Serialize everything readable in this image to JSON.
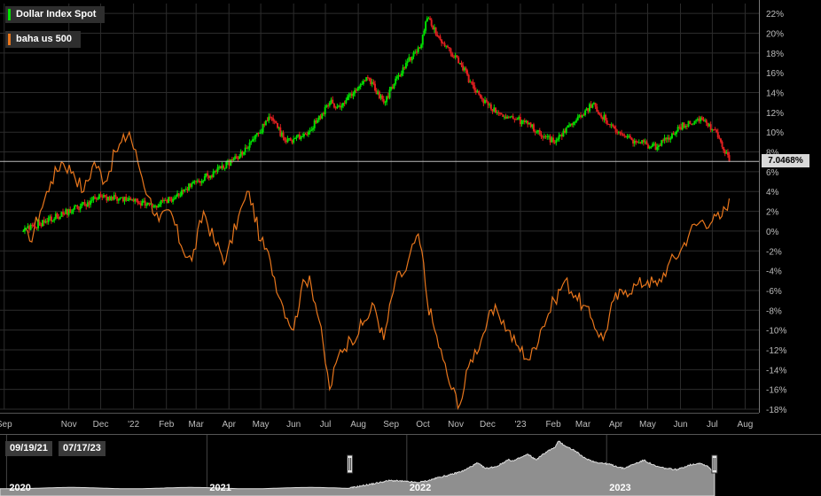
{
  "legend": [
    {
      "label": "Dollar Index Spot",
      "color": "#00e000"
    },
    {
      "label": "baha us 500",
      "color": "#e8761c"
    }
  ],
  "last_value_label": "7.0468%",
  "range": {
    "start": "09/19/21",
    "end": "07/17/23"
  },
  "navigator": {
    "year_labels": [
      "2020",
      "2021",
      "2022",
      "2023"
    ]
  },
  "chart_data": {
    "type": "line",
    "xlabel": "",
    "ylabel": "",
    "y_unit": "%",
    "ylim": [
      -18,
      23
    ],
    "y_ticks": [
      22,
      20,
      18,
      16,
      14,
      12,
      10,
      8,
      6,
      4,
      2,
      0,
      -2,
      -4,
      -6,
      -8,
      -10,
      -12,
      -14,
      -16,
      -18
    ],
    "y_tick_labels": [
      "22%",
      "20%",
      "18%",
      "16%",
      "14%",
      "12%",
      "10%",
      "8%",
      "6%",
      "4%",
      "2%",
      "0%",
      "-2%",
      "-4%",
      "-6%",
      "-8%",
      "-10%",
      "-12%",
      "-14%",
      "-16%",
      "-18%"
    ],
    "x_tick_labels": [
      "Sep",
      "Nov",
      "Dec",
      "'22",
      "Feb",
      "Mar",
      "Apr",
      "May",
      "Jun",
      "Jul",
      "Aug",
      "Sep",
      "Oct",
      "Nov",
      "Dec",
      "'23",
      "Feb",
      "Mar",
      "Apr",
      "May",
      "Jun",
      "Jul",
      "Aug"
    ],
    "x_tick_dates": [
      "2021-09-01",
      "2021-11-01",
      "2021-12-01",
      "2022-01-01",
      "2022-02-01",
      "2022-03-01",
      "2022-04-01",
      "2022-05-01",
      "2022-06-01",
      "2022-07-01",
      "2022-08-01",
      "2022-09-01",
      "2022-10-01",
      "2022-11-01",
      "2022-12-01",
      "2023-01-01",
      "2023-02-01",
      "2023-03-01",
      "2023-04-01",
      "2023-05-01",
      "2023-06-01",
      "2023-07-01",
      "2023-08-01"
    ],
    "grid": true,
    "legend_position": "top-left",
    "series": [
      {
        "name": "Dollar Index Spot",
        "style": "candles",
        "color_up": "#00e000",
        "color_down": "#e02020",
        "x": [
          "2021-09-19",
          "2021-10-10",
          "2021-11-05",
          "2021-12-01",
          "2022-01-01",
          "2022-01-20",
          "2022-02-10",
          "2022-03-01",
          "2022-03-20",
          "2022-04-15",
          "2022-05-10",
          "2022-05-25",
          "2022-06-15",
          "2022-07-05",
          "2022-07-15",
          "2022-08-10",
          "2022-08-25",
          "2022-09-15",
          "2022-09-28",
          "2022-10-05",
          "2022-10-20",
          "2022-11-05",
          "2022-11-20",
          "2022-12-10",
          "2023-01-05",
          "2023-02-01",
          "2023-02-20",
          "2023-03-10",
          "2023-04-01",
          "2023-04-20",
          "2023-05-10",
          "2023-05-31",
          "2023-06-20",
          "2023-07-05",
          "2023-07-17"
        ],
        "y": [
          0.0,
          1.0,
          2.2,
          3.5,
          3.0,
          2.5,
          3.5,
          5.0,
          6.0,
          8.0,
          11.5,
          9.0,
          10.0,
          13.0,
          12.5,
          15.5,
          13.0,
          17.0,
          18.5,
          21.5,
          19.0,
          17.0,
          14.0,
          12.0,
          11.0,
          9.0,
          11.0,
          12.8,
          10.0,
          9.0,
          8.5,
          10.5,
          11.5,
          10.0,
          7.0468
        ]
      },
      {
        "name": "baha us 500",
        "style": "line",
        "color": "#e8761c",
        "x": [
          "2021-09-19",
          "2021-09-25",
          "2021-10-05",
          "2021-10-15",
          "2021-10-25",
          "2021-11-05",
          "2021-11-15",
          "2021-11-25",
          "2021-12-05",
          "2021-12-15",
          "2021-12-28",
          "2022-01-05",
          "2022-01-15",
          "2022-01-25",
          "2022-02-05",
          "2022-02-15",
          "2022-02-25",
          "2022-03-08",
          "2022-03-18",
          "2022-03-29",
          "2022-04-10",
          "2022-04-20",
          "2022-05-01",
          "2022-05-10",
          "2022-05-20",
          "2022-06-01",
          "2022-06-08",
          "2022-06-16",
          "2022-06-25",
          "2022-07-05",
          "2022-07-15",
          "2022-07-25",
          "2022-08-05",
          "2022-08-16",
          "2022-08-25",
          "2022-09-05",
          "2022-09-15",
          "2022-09-25",
          "2022-09-30",
          "2022-10-05",
          "2022-10-12",
          "2022-10-20",
          "2022-10-28",
          "2022-11-05",
          "2022-11-15",
          "2022-11-25",
          "2022-12-01",
          "2022-12-10",
          "2022-12-20",
          "2022-12-28",
          "2023-01-10",
          "2023-01-20",
          "2023-02-02",
          "2023-02-12",
          "2023-02-22",
          "2023-03-01",
          "2023-03-10",
          "2023-03-20",
          "2023-03-30",
          "2023-04-10",
          "2023-04-20",
          "2023-05-01",
          "2023-05-10",
          "2023-05-20",
          "2023-06-01",
          "2023-06-10",
          "2023-06-20",
          "2023-07-01",
          "2023-07-10",
          "2023-07-17"
        ],
        "y": [
          0.0,
          -1.0,
          2.0,
          5.0,
          7.0,
          6.0,
          4.0,
          7.0,
          5.0,
          8.0,
          10.0,
          7.0,
          3.5,
          1.0,
          2.0,
          -1.5,
          -3.0,
          2.0,
          -1.0,
          -3.0,
          1.5,
          4.0,
          -1.0,
          -3.0,
          -7.0,
          -10.0,
          -6.0,
          -4.5,
          -9.0,
          -16.0,
          -12.0,
          -11.0,
          -9.5,
          -7.5,
          -11.0,
          -5.0,
          -4.0,
          -0.5,
          -2.0,
          -7.0,
          -10.0,
          -13.0,
          -16.0,
          -17.5,
          -13.0,
          -11.0,
          -9.0,
          -8.0,
          -10.0,
          -11.5,
          -13.0,
          -10.0,
          -7.0,
          -5.0,
          -6.5,
          -7.5,
          -9.0,
          -11.0,
          -7.0,
          -6.0,
          -5.5,
          -5.0,
          -5.5,
          -3.5,
          -2.0,
          0.0,
          1.0,
          1.0,
          1.5,
          3.3
        ]
      }
    ]
  }
}
